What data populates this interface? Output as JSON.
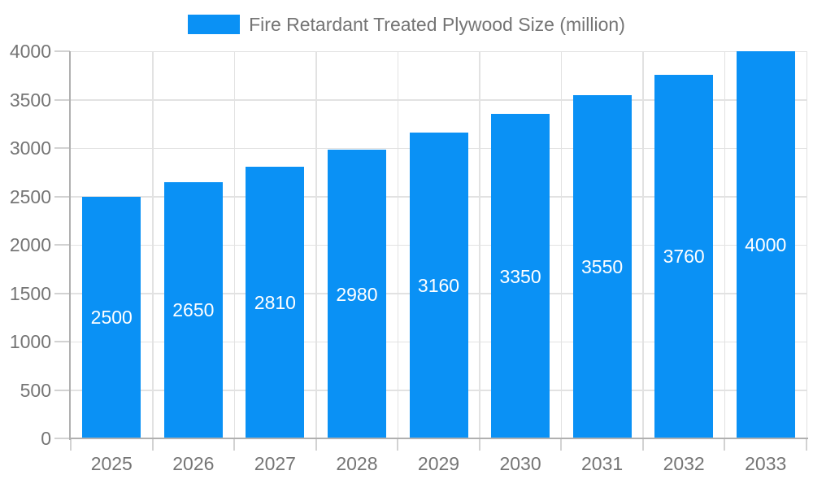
{
  "legend": {
    "label": "Fire Retardant Treated Plywood Size (million)"
  },
  "chart_data": {
    "type": "bar",
    "title": "Fire Retardant Treated Plywood Size (million)",
    "categories": [
      "2025",
      "2026",
      "2027",
      "2028",
      "2029",
      "2030",
      "2031",
      "2032",
      "2033"
    ],
    "values": [
      2500,
      2650,
      2810,
      2980,
      3160,
      3350,
      3550,
      3760,
      4000
    ],
    "bar_labels": [
      "2500",
      "2650",
      "2810",
      "2980",
      "3160",
      "3350",
      "3550",
      "3760",
      "4000"
    ],
    "xlabel": "",
    "ylabel": "",
    "ylim": [
      0,
      4000
    ],
    "yticks": [
      0,
      500,
      1000,
      1500,
      2000,
      2500,
      3000,
      3500,
      4000
    ],
    "grid": true,
    "legend_position": "top",
    "colors": {
      "bar": "#0a91f5",
      "bar_label": "#ffffff",
      "axis_label": "#757575",
      "gridline": "#e2e2e2",
      "axis_line": "#b0b0b0",
      "tick": "#d2d2d2",
      "background": "#ffffff"
    }
  }
}
